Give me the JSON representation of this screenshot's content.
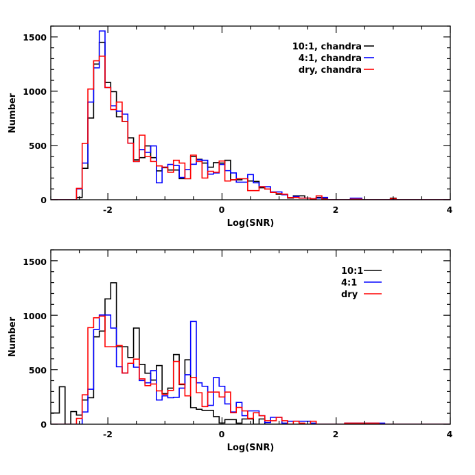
{
  "colors": {
    "10:1": "#000000",
    "4:1": "#0000ff",
    "dry": "#ff0000"
  },
  "chart_data": [
    {
      "type": "histogram",
      "xlabel": "Log(SNR)",
      "ylabel": "Number",
      "xlim": [
        -3,
        4
      ],
      "ylim": [
        0,
        1600
      ],
      "xticks": [
        "-2",
        "0",
        "2",
        "4"
      ],
      "yticks": [
        "0",
        "500",
        "1000",
        "1500"
      ],
      "legend_position": "top-right",
      "bin_width": 0.1,
      "bin_start": -3.0,
      "series": [
        {
          "name": "10:1, chandra",
          "color": "#000000",
          "values": [
            0,
            0,
            0,
            0,
            0,
            21,
            290,
            753,
            1250,
            1450,
            1080,
            996,
            764,
            721,
            570,
            367,
            388,
            496,
            388,
            266,
            295,
            274,
            274,
            194,
            194,
            400,
            373,
            338,
            300,
            342,
            338,
            363,
            184,
            184,
            194,
            173,
            169,
            110,
            99,
            68,
            51,
            46,
            15,
            36,
            36,
            15,
            8,
            21,
            10,
            0,
            0,
            0,
            0,
            5,
            5,
            0,
            0,
            0,
            0,
            0,
            15
          ]
        },
        {
          "name": "4:1, chandra",
          "color": "#0000ff",
          "values": [
            0,
            0,
            0,
            0,
            0,
            100,
            338,
            900,
            1215,
            1555,
            1034,
            865,
            816,
            789,
            521,
            352,
            462,
            437,
            496,
            156,
            300,
            325,
            316,
            205,
            278,
            327,
            367,
            363,
            236,
            247,
            325,
            268,
            247,
            162,
            162,
            232,
            156,
            120,
            120,
            72,
            72,
            46,
            20,
            30,
            15,
            15,
            8,
            15,
            21,
            0,
            0,
            0,
            0,
            15,
            15,
            0,
            0,
            0,
            0,
            0,
            5
          ]
        },
        {
          "name": "dry, chandra",
          "color": "#ff0000",
          "values": [
            0,
            0,
            0,
            0,
            0,
            105,
            520,
            1020,
            1280,
            1323,
            1034,
            831,
            900,
            721,
            521,
            352,
            595,
            400,
            352,
            312,
            300,
            253,
            363,
            338,
            194,
            411,
            352,
            200,
            262,
            253,
            357,
            173,
            184,
            194,
            194,
            84,
            84,
            120,
            99,
            68,
            57,
            51,
            20,
            21,
            15,
            15,
            8,
            36,
            5,
            0,
            0,
            0,
            0,
            5,
            5,
            0,
            0,
            0,
            0,
            0,
            10
          ]
        }
      ]
    },
    {
      "type": "histogram",
      "xlabel": "Log(SNR)",
      "ylabel": "Number",
      "xlim": [
        -3,
        4
      ],
      "ylim": [
        0,
        1600
      ],
      "xticks": [
        "-2",
        "0",
        "2",
        "4"
      ],
      "yticks": [
        "0",
        "500",
        "1000",
        "1500"
      ],
      "legend_position": "top-right",
      "bin_width": 0.1,
      "bin_start": -3.0,
      "series": [
        {
          "name": "10:1",
          "color": "#000000",
          "values": [
            103,
            103,
            344,
            0,
            116,
            84,
            222,
            243,
            802,
            855,
            1150,
            1298,
            711,
            711,
            612,
            882,
            549,
            468,
            405,
            538,
            281,
            331,
            639,
            363,
            591,
            152,
            137,
            127,
            127,
            70,
            11,
            42,
            42,
            10,
            48,
            48,
            0,
            48,
            0,
            0,
            0,
            0,
            0,
            0,
            0,
            0,
            0,
            0,
            0,
            0,
            0,
            0,
            0,
            0,
            0,
            0,
            0,
            0,
            0,
            0,
            0
          ]
        },
        {
          "name": "4:1",
          "color": "#0000ff",
          "values": [
            0,
            0,
            0,
            0,
            0,
            0,
            112,
            321,
            869,
            1002,
            1002,
            882,
            527,
            470,
            559,
            523,
            401,
            380,
            492,
            222,
            260,
            243,
            247,
            331,
            454,
            943,
            380,
            348,
            173,
            428,
            348,
            186,
            112,
            200,
            78,
            122,
            122,
            78,
            15,
            63,
            63,
            10,
            27,
            27,
            27,
            27,
            10,
            0,
            0,
            0,
            0,
            0,
            10,
            10,
            10,
            10,
            10,
            10,
            10,
            0,
            0
          ]
        },
        {
          "name": "dry",
          "color": "#ff0000",
          "values": [
            0,
            0,
            0,
            0,
            0,
            53,
            270,
            886,
            977,
            992,
            711,
            711,
            722,
            470,
            559,
            597,
            416,
            354,
            369,
            306,
            274,
            310,
            576,
            369,
            260,
            428,
            289,
            162,
            295,
            295,
            250,
            295,
            105,
            154,
            122,
            53,
            105,
            78,
            32,
            32,
            63,
            32,
            0,
            27,
            10,
            0,
            27,
            0,
            0,
            0,
            0,
            0,
            10,
            10,
            10,
            10,
            10,
            10,
            0,
            0,
            0
          ]
        }
      ]
    }
  ]
}
